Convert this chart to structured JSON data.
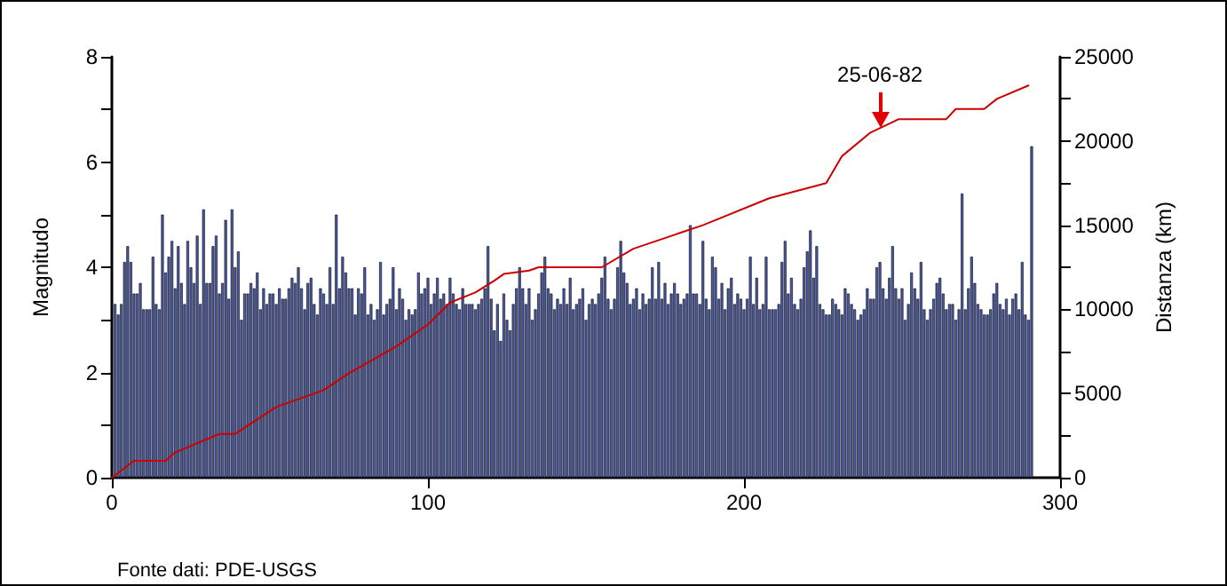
{
  "chart_data": {
    "type": "bar",
    "ylabel": "Magnitudo",
    "y2label": "Distanza (km)",
    "xlim": [
      0,
      300
    ],
    "xticks": [
      0,
      100,
      200,
      300
    ],
    "ylim": [
      0,
      8
    ],
    "yticks": [
      0,
      {
        "value": 1,
        "label": null
      },
      2,
      {
        "value": 3,
        "label": null
      },
      4,
      {
        "value": 5,
        "label": null
      },
      6,
      {
        "value": 7,
        "label": null
      },
      8
    ],
    "y2lim": [
      0,
      25000
    ],
    "y2ticks": [
      0,
      {
        "value": 2500,
        "label": null
      },
      5000,
      {
        "value": 7500,
        "label": null
      },
      10000,
      {
        "value": 12500,
        "label": null
      },
      15000,
      {
        "value": 17500,
        "label": null
      },
      20000,
      {
        "value": 22500,
        "label": null
      },
      25000
    ],
    "grid": false,
    "marker": "none",
    "line_style": "solid",
    "annotations": [
      {
        "text": "25-06-82",
        "x": 243,
        "y": 6.6
      },
      "Fonte dati: PDE-USGS"
    ],
    "series": [
      {
        "color": "#4a5aa8",
        "x": [
          1,
          2,
          3,
          4,
          5,
          6,
          7,
          8,
          9,
          10,
          11,
          12,
          13,
          14,
          15,
          16,
          17,
          18,
          19,
          20,
          21,
          22,
          23,
          24,
          25,
          26,
          27,
          28,
          29,
          30,
          31,
          32,
          33,
          34,
          35,
          36,
          37,
          38,
          39,
          40,
          41,
          42,
          43,
          44,
          45,
          46,
          47,
          48,
          49,
          50,
          51,
          52,
          53,
          54,
          55,
          56,
          57,
          58,
          59,
          60,
          61,
          62,
          63,
          64,
          65,
          66,
          67,
          68,
          69,
          70,
          71,
          72,
          73,
          74,
          75,
          76,
          77,
          78,
          79,
          80,
          81,
          82,
          83,
          84,
          85,
          86,
          87,
          88,
          89,
          90,
          91,
          92,
          93,
          94,
          95,
          96,
          97,
          98,
          99,
          100,
          101,
          102,
          103,
          104,
          105,
          106,
          107,
          108,
          109,
          110,
          111,
          112,
          113,
          114,
          115,
          116,
          117,
          118,
          119,
          120,
          121,
          122,
          123,
          124,
          125,
          126,
          127,
          128,
          129,
          130,
          131,
          132,
          133,
          134,
          135,
          136,
          137,
          138,
          139,
          140,
          141,
          142,
          143,
          144,
          145,
          146,
          147,
          148,
          149,
          150,
          151,
          152,
          153,
          154,
          155,
          156,
          157,
          158,
          159,
          160,
          161,
          162,
          163,
          164,
          165,
          166,
          167,
          168,
          169,
          170,
          171,
          172,
          173,
          174,
          175,
          176,
          177,
          178,
          179,
          180,
          181,
          182,
          183,
          184,
          185,
          186,
          187,
          188,
          189,
          190,
          191,
          192,
          193,
          194,
          195,
          196,
          197,
          198,
          199,
          200,
          201,
          202,
          203,
          204,
          205,
          206,
          207,
          208,
          209,
          210,
          211,
          212,
          213,
          214,
          215,
          216,
          217,
          218,
          219,
          220,
          221,
          222,
          223,
          224,
          225,
          226,
          227,
          228,
          229,
          230,
          231,
          232,
          233,
          234,
          235,
          236,
          237,
          238,
          239,
          240,
          241,
          242,
          243,
          244,
          245,
          246,
          247,
          248,
          249,
          250,
          251,
          252,
          253,
          254,
          255,
          256,
          257,
          258,
          259,
          260,
          261,
          262,
          263,
          264,
          265,
          266,
          267,
          268,
          269,
          270,
          271,
          272,
          273,
          274,
          275,
          276,
          277,
          278,
          279,
          280,
          281,
          282,
          283,
          284,
          285,
          286,
          287,
          288,
          289,
          290,
          291
        ],
        "values": [
          3.3,
          3.1,
          3.3,
          4.1,
          4.4,
          4.1,
          3.5,
          3.5,
          3.7,
          3.2,
          3.2,
          3.2,
          4.2,
          3.3,
          3.2,
          5.0,
          3.9,
          4.2,
          4.5,
          3.6,
          4.4,
          3.7,
          3.3,
          4.5,
          4.0,
          3.7,
          4.6,
          3.3,
          5.1,
          3.7,
          3.7,
          4.4,
          4.6,
          3.5,
          3.7,
          4.9,
          3.4,
          5.1,
          4.0,
          4.3,
          3.0,
          3.5,
          3.5,
          3.7,
          3.6,
          3.9,
          3.2,
          3.6,
          3.3,
          3.5,
          3.5,
          3.3,
          3.6,
          3.4,
          3.4,
          3.6,
          3.8,
          3.7,
          4.0,
          3.6,
          3.2,
          3.7,
          3.8,
          3.3,
          3.1,
          3.6,
          3.5,
          3.3,
          4.0,
          3.3,
          5.0,
          3.6,
          4.2,
          3.9,
          3.6,
          3.6,
          3.1,
          3.6,
          3.5,
          4.0,
          3.1,
          3.3,
          3.0,
          3.2,
          4.1,
          3.1,
          3.3,
          3.4,
          4.0,
          3.2,
          3.6,
          3.4,
          3.0,
          3.2,
          3.1,
          3.2,
          3.9,
          3.5,
          3.6,
          3.8,
          3.3,
          3.5,
          3.8,
          3.4,
          3.5,
          3.3,
          3.8,
          3.5,
          3.3,
          3.2,
          3.6,
          3.3,
          3.3,
          3.3,
          3.2,
          3.3,
          3.4,
          3.6,
          4.4,
          3.4,
          2.8,
          3.3,
          2.6,
          3.5,
          3.0,
          2.8,
          3.3,
          3.6,
          4.0,
          3.6,
          3.3,
          3.6,
          3.0,
          3.2,
          3.5,
          3.9,
          4.2,
          3.6,
          3.5,
          3.2,
          3.4,
          3.3,
          3.6,
          3.3,
          3.8,
          3.2,
          3.3,
          3.4,
          3.6,
          3.0,
          3.3,
          3.4,
          3.3,
          3.5,
          3.8,
          4.2,
          3.4,
          3.2,
          3.4,
          4.0,
          4.5,
          3.9,
          3.7,
          3.3,
          3.4,
          3.6,
          3.2,
          3.5,
          3.3,
          3.4,
          4.0,
          3.4,
          4.1,
          3.4,
          3.7,
          3.3,
          3.5,
          3.7,
          3.5,
          3.3,
          3.4,
          3.5,
          4.8,
          3.5,
          3.5,
          3.3,
          4.5,
          3.4,
          3.2,
          4.2,
          4.0,
          3.4,
          3.7,
          3.2,
          3.6,
          3.8,
          3.3,
          3.5,
          3.4,
          3.2,
          3.4,
          4.2,
          3.3,
          3.8,
          3.2,
          3.3,
          4.2,
          3.2,
          3.2,
          3.2,
          3.3,
          4.1,
          4.5,
          3.5,
          3.8,
          3.3,
          3.2,
          3.4,
          4.0,
          4.3,
          4.7,
          3.8,
          4.4,
          3.3,
          3.2,
          3.1,
          3.1,
          3.4,
          3.3,
          3.2,
          3.1,
          3.6,
          3.5,
          3.3,
          3.2,
          3.0,
          3.1,
          3.2,
          3.6,
          3.4,
          3.4,
          4.0,
          4.1,
          3.6,
          3.4,
          3.8,
          4.4,
          3.6,
          3.4,
          3.6,
          3.0,
          3.3,
          3.9,
          3.6,
          3.4,
          4.1,
          3.2,
          3.0,
          3.2,
          3.4,
          3.7,
          3.8,
          3.5,
          3.2,
          3.3,
          3.3,
          3.0,
          3.2,
          5.4,
          3.2,
          3.6,
          4.2,
          3.7,
          3.3,
          3.2,
          3.1,
          3.1,
          3.2,
          3.5,
          3.7,
          3.3,
          3.2,
          3.4,
          3.1,
          3.4,
          3.5,
          3.2,
          4.1,
          3.1,
          3.0,
          6.3
        ]
      },
      {
        "type": "line",
        "axis": "y2",
        "color": "#cc0000",
        "x": [
          0,
          7,
          17,
          20,
          34,
          39,
          52,
          67,
          75,
          90,
          100,
          107,
          115,
          121,
          124,
          132,
          135,
          155,
          165,
          187,
          208,
          226,
          231,
          240,
          249,
          264,
          267,
          276,
          280,
          290
        ],
        "values": [
          0,
          1000,
          1000,
          1500,
          2600,
          2600,
          4200,
          5200,
          6200,
          7800,
          9100,
          10400,
          11000,
          11700,
          12100,
          12300,
          12500,
          12500,
          13600,
          15000,
          16600,
          17500,
          19100,
          20500,
          21300,
          21300,
          21900,
          21900,
          22500,
          23300
        ]
      }
    ]
  }
}
